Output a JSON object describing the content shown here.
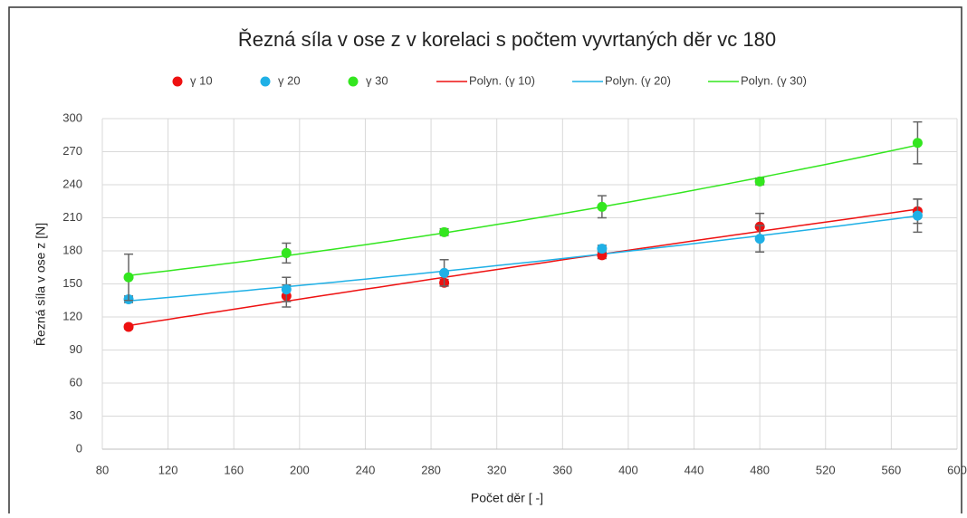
{
  "chart_data": {
    "type": "scatter",
    "title": "Řezná síla v ose z v korelaci s počtem vyvrtaných děr vc 180",
    "xlabel": "Počet děr [ -]",
    "ylabel": "Řezná síla v ose z [N]",
    "x": [
      96,
      192,
      288,
      384,
      480,
      576
    ],
    "series": [
      {
        "name": "γ 10",
        "color": "#ee1111",
        "values": [
          111,
          139,
          151,
          176,
          202,
          216
        ],
        "errors": [
          2,
          10,
          3,
          3,
          12,
          11
        ]
      },
      {
        "name": "γ 20",
        "color": "#1fb0e6",
        "values": [
          136,
          145,
          160,
          182,
          191,
          212
        ],
        "errors": [
          3,
          11,
          12,
          3,
          12,
          15
        ]
      },
      {
        "name": "γ 30",
        "color": "#33e61f",
        "values": [
          156,
          178,
          197,
          220,
          243,
          278
        ],
        "errors": [
          21,
          9,
          3,
          10,
          3,
          19
        ]
      }
    ],
    "trendlines": [
      {
        "name": "Polyn. (γ 10)",
        "color": "#ee1111"
      },
      {
        "name": "Polyn. (γ 20)",
        "color": "#1fb0e6"
      },
      {
        "name": "Polyn. (γ 30)",
        "color": "#33e61f"
      }
    ],
    "xlim": [
      80,
      600
    ],
    "xticks": [
      80,
      120,
      160,
      200,
      240,
      280,
      320,
      360,
      400,
      440,
      480,
      520,
      560,
      600
    ],
    "ylim": [
      0,
      300
    ],
    "yticks": [
      0,
      30,
      60,
      90,
      120,
      150,
      180,
      210,
      240,
      270,
      300
    ],
    "grid": true,
    "legend": "top"
  }
}
